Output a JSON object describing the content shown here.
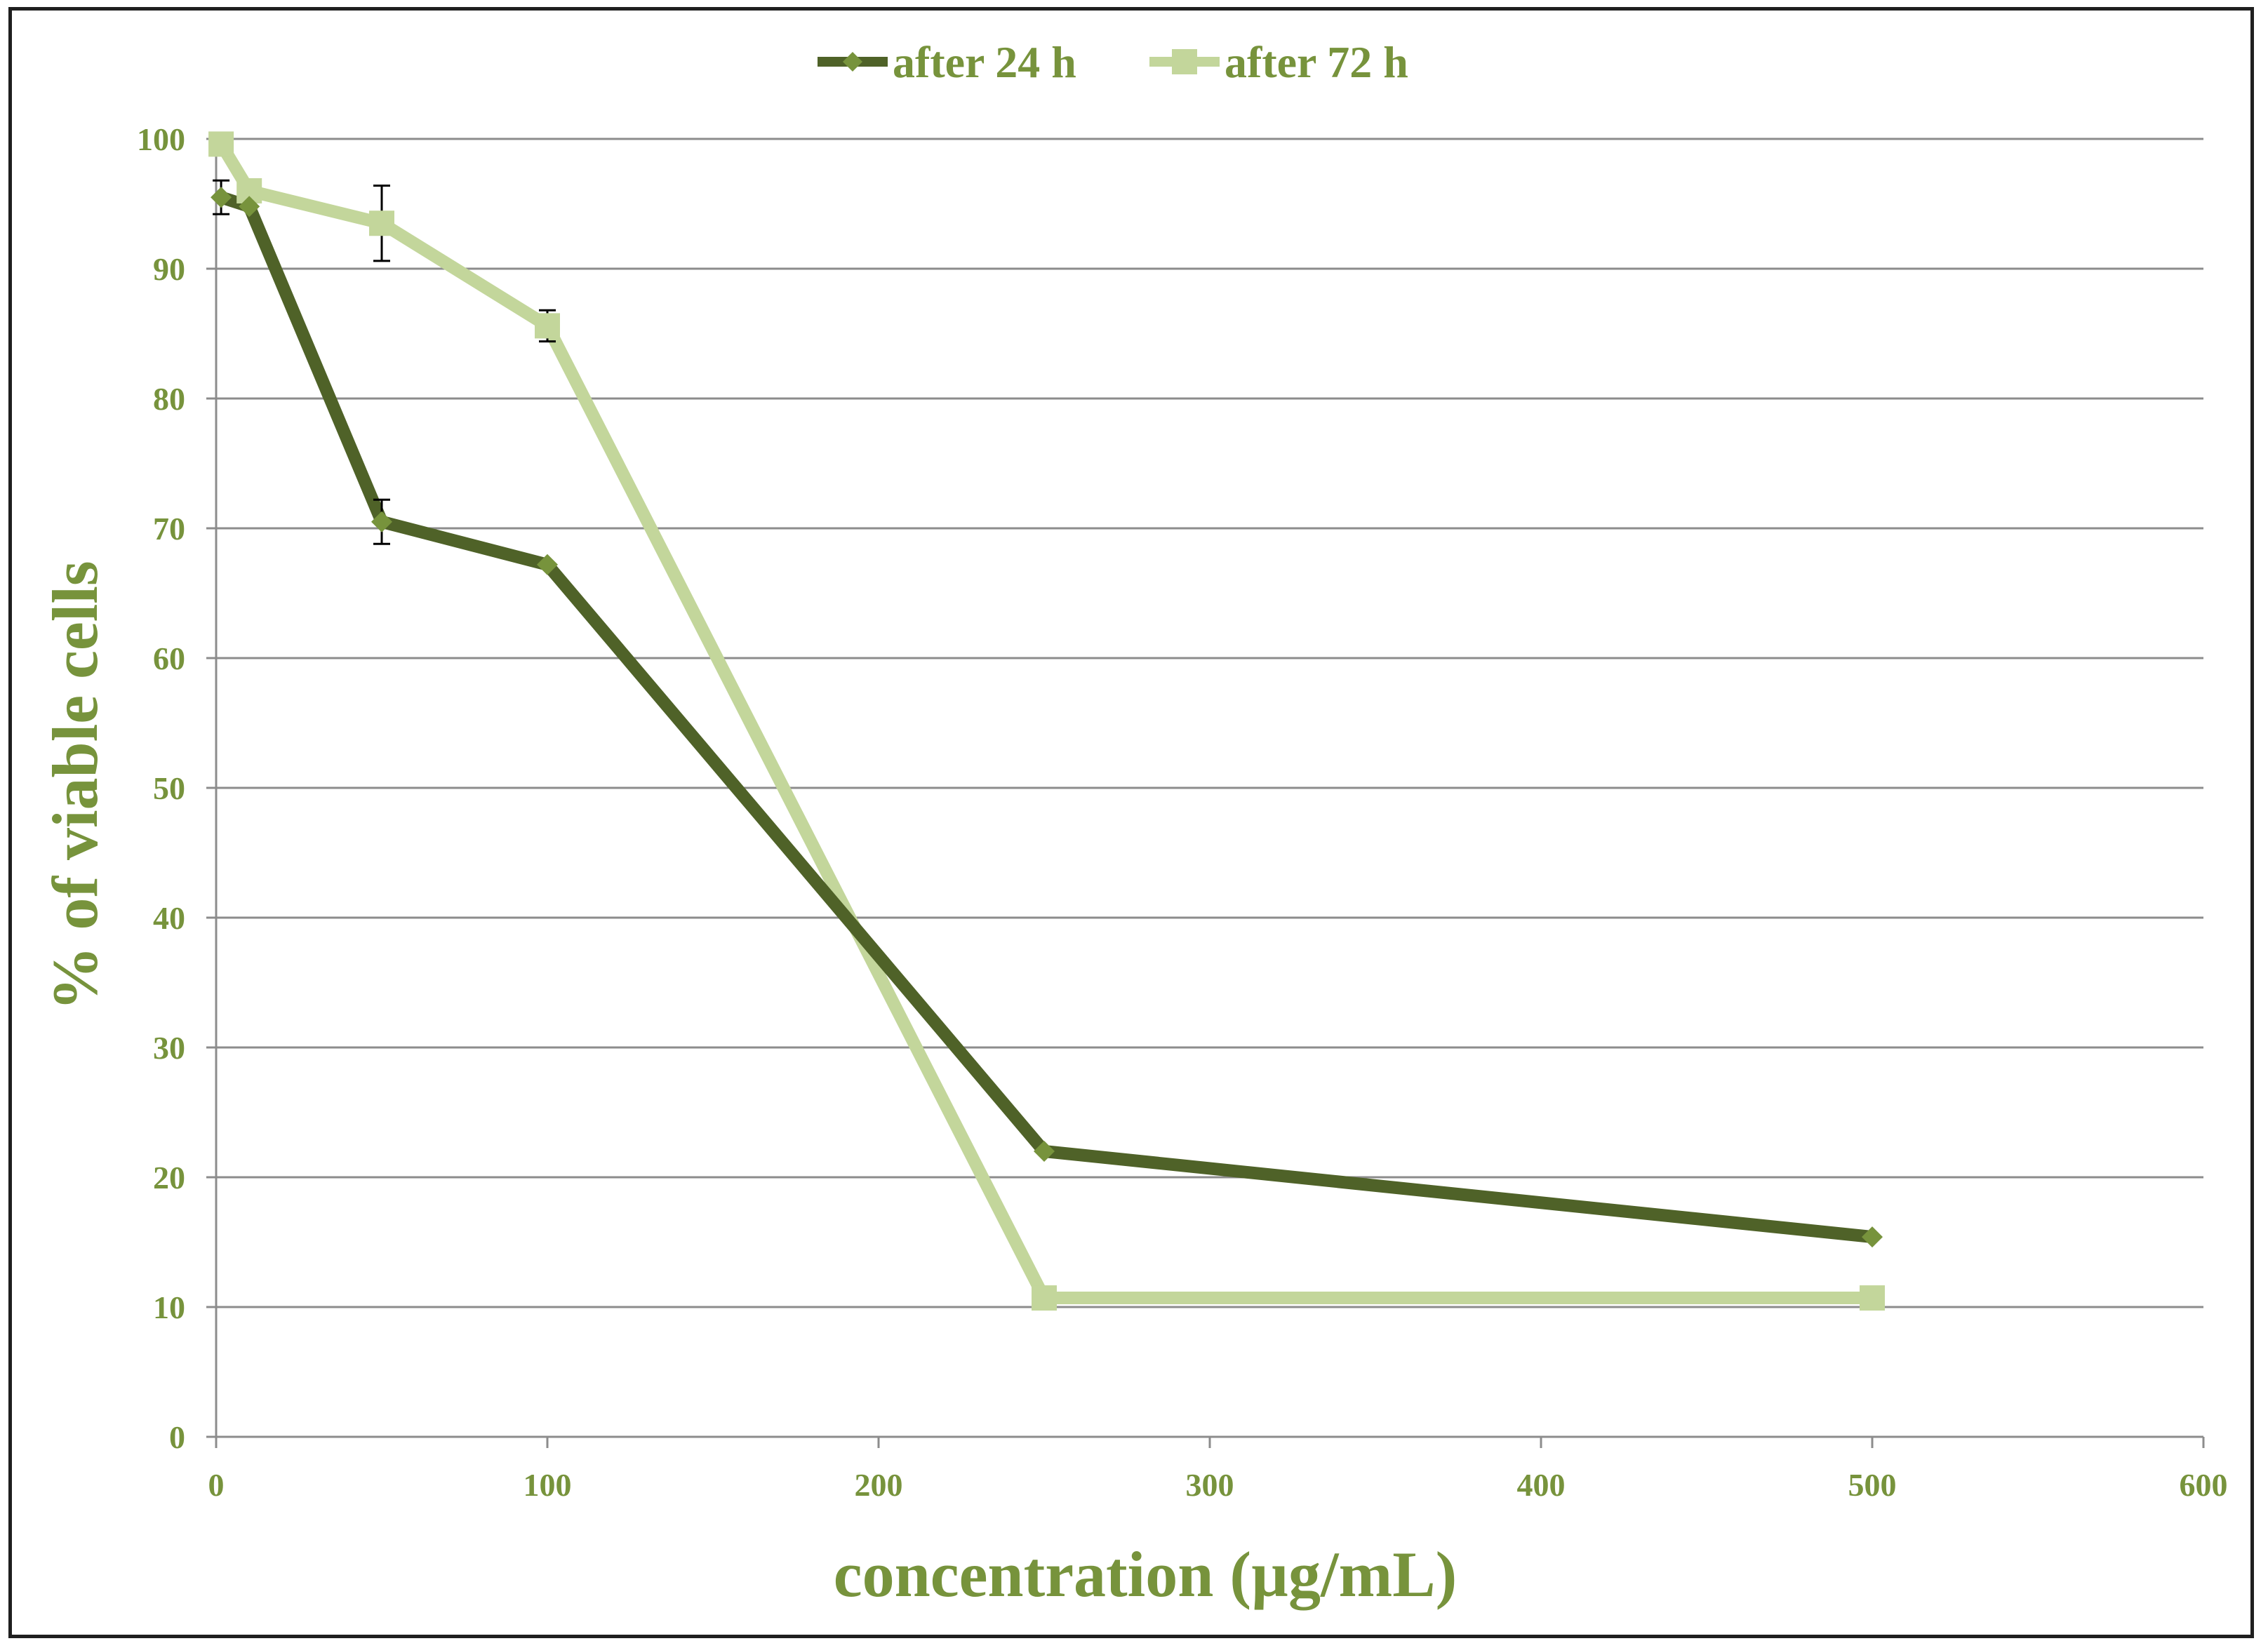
{
  "chart_data": {
    "type": "line",
    "title": "",
    "xlabel": "concentration (µg/mL)",
    "ylabel": "%  of viable cells",
    "xlim": [
      0,
      600
    ],
    "ylim": [
      0,
      100
    ],
    "xticks": [
      0,
      100,
      200,
      300,
      400,
      500,
      600
    ],
    "yticks": [
      0,
      10,
      20,
      30,
      40,
      50,
      60,
      70,
      80,
      90,
      100
    ],
    "grid": "horizontal",
    "legend_position": "top-center",
    "series": [
      {
        "name": "after 24 h",
        "color": "#4f6228",
        "marker": "diamond",
        "x": [
          1.5,
          10,
          50,
          100,
          250,
          500
        ],
        "y": [
          95.5,
          94.8,
          70.5,
          67.2,
          22.0,
          15.4
        ],
        "error": [
          1.3,
          0,
          1.7,
          0,
          0,
          0
        ]
      },
      {
        "name": "after 72 h",
        "color": "#c3d69b",
        "marker": "square",
        "x": [
          1.5,
          10,
          50,
          100,
          250,
          500
        ],
        "y": [
          99.6,
          96.0,
          93.5,
          85.6,
          10.7,
          10.7
        ],
        "error": [
          0,
          0,
          2.9,
          1.2,
          0,
          0
        ]
      }
    ]
  }
}
